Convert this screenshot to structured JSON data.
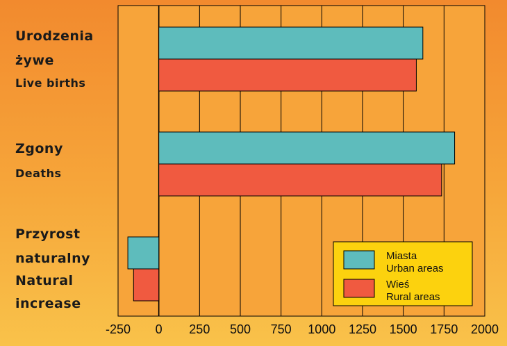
{
  "chart_data": {
    "type": "bar",
    "orientation": "horizontal",
    "categories": [
      {
        "pl_lines": [
          "Urodzenia",
          "żywe"
        ],
        "en_lines": [
          "Live births"
        ]
      },
      {
        "pl_lines": [
          "Zgony"
        ],
        "en_lines": [
          "Deaths"
        ]
      },
      {
        "pl_lines": [
          "Przyrost",
          "naturalny"
        ],
        "en_lines": [
          "Natural",
          "increase"
        ]
      }
    ],
    "series": [
      {
        "name_pl": "Miasta",
        "name_en": "Urban areas",
        "color": "#5ebcbc",
        "values": [
          1620,
          1815,
          -190
        ]
      },
      {
        "name_pl": "Wieś",
        "name_en": "Rural areas",
        "color": "#f05a40",
        "values": [
          1580,
          1735,
          -155
        ]
      }
    ],
    "xlim": [
      -250,
      2000
    ],
    "xticks": [
      "-250",
      "0",
      "250",
      "500",
      "750",
      "1000",
      "1250",
      "1500",
      "1750",
      "2000"
    ],
    "grid": true,
    "legend_position": "bottom-right",
    "colors": {
      "plot_background": "#f7a43a",
      "legend_background": "#fcd20e"
    }
  }
}
